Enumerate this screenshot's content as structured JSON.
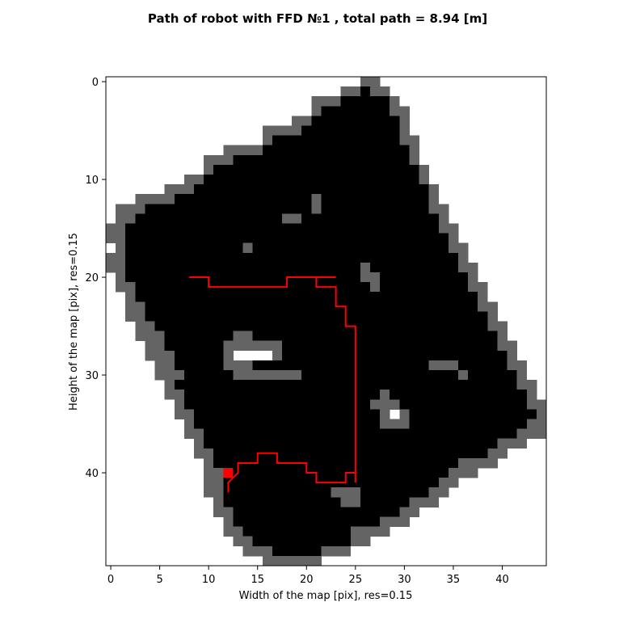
{
  "chart_data": {
    "type": "heatmap",
    "title": "Path of robot with FFD №1 , total path = 8.94 [m]",
    "xlabel": "Width of the map [pix], res=0.15",
    "ylabel": "Height of the map [pix], res=0.15",
    "grid": false,
    "x_ticks": [
      0,
      5,
      10,
      15,
      20,
      25,
      30,
      35,
      40
    ],
    "y_ticks": [
      0,
      10,
      20,
      30,
      40
    ],
    "map_width": 45,
    "map_height": 50,
    "colors": {
      "free": "#ffffff",
      "obstacle": "#000000",
      "boundary": "#646464",
      "path": "#ff0000"
    },
    "map_rows": [
      "..........................gg.................",
      "........................ggbgg................",
      ".....................gggbbbbbg...............",
      ".....................gbbbbbbbgg..............",
      "...................ggbbbbbbbbbg..............",
      "................ggggbbbbbbbbbbg..............",
      "................gbbbbbbbbbbbbbgg.............",
      "............ggggbbbbbbbbbbbbbbbg.............",
      "..........gggbbbbbbbbbbbbbbbbbbg.............",
      "..........gbbbbbbbbbbbbbbbbbbbbbg............",
      "........ggbbbbbbbbbbbbbbbbbbbbbbg............",
      "......gggbbbbbbbbbbbbbbbbbbbbbbbbg...........",
      "...ggggbbbbbbbbbbbbbbgbbbbbbbbbbbg...........",
      ".gggbbbbbbbbbbbbbbbbbgbbbbbbbbbbbgg..........",
      ".ggbbbbbbbbbbbbbbbggbbbbbbbbbbbbbbg..........",
      "ggbbbbbbbbbbbbbbbbbbbbbbbbbbbbbbbbgg.........",
      "ggbbbbbbbbbbbbbbbbbbbbbbbbbbbbbbbbbg.........",
      ".gbbbbbbbbbbbbgbbbbbbbbbbbbbbbbbbbbgg........",
      "ggbbbbbbbbbbbbbbbbbbbbbbbbbbbbbbbbbbg........",
      "ggbbbbbbbbbbbbbbbbbbbbbbbbgbbbbbbbbbgg.......",
      ".gbbbbbbbbbbbbbbbbbbbbbbbbggbbbbbbbbbg.......",
      ".ggbbbbbbbbbbbbbbbbbbbbbbbbgbbbbbbbbbgg......",
      "..gbbbbbbbbbbbbbbbbbbbbbbbbbbbbbbbbbbbg......",
      "..ggbbbbbbbbbbbbbbbbbbbbbbbbbbbbbbbbbbgg.....",
      "..ggbbbbbbbbbbbbbbbbbbbbbbbbbbbbbbbbbbbg.....",
      "...ggbbbbbbbbbbbbbbbbbbbbbbbbbbbbbbbbbbgg....",
      "...gggbbbbbbbggbbbbbbbbbbbbbbbbbbbbbbbbbg....",
      "....ggbbbbbbggggggbbbbbbbbbbbbbbbbbbbbbbgg...",
      "....gggbbbbbg....gbbbbbbbbbbbbbbbbbbbbbbbg...",
      ".....ggbbbbbgggbbbbbbbbbbbbbbbbbbgggbbbbbgg..",
      ".....gggbbbbbgggggggbbbbbbbbbbbbbbbbgbbbbbg..",
      "......gbbbbbbbbbbbbbbbbbbbbbbbbbbbbbbbbbbbgg.",
      "......ggbbbbbbbbbbbbbbbbbbbbgbbbbbbbbbbbbbbg.",
      ".......gbbbbbbbbbbbbbbbbbbbgggbbbbbbbbbbbbbgg",
      ".......ggbbbbbbbbbbbbbbbbbbbg.gbbbbbbbbbbbbbg",
      "........gbbbbbbbbbbbbbbbbbbbgggbbbbbbbbbbbbgg",
      "........ggbbbbbbbbbbbbbbbbbbbbbbbbbbbbbbbbggg",
      ".........gbbbbbbbbbbbbbbbbbbbbbbbbbbbbbbggg..",
      ".........ggbbbbbbbbbbbbbbbbbbbbbbbbbbbbgg....",
      "..........gbbbbbbbbbbbbbbbbbbbbbbbbbgggg.....",
      "..........ggbbbbbbbbbbbbbbbbbbbbbbbggg.......",
      "..........ggbbbbbbbbbbbbbbbbbbbbbbgg.........",
      "..........ggbbbbbbbbbbbgggbbbbbbbgg..........",
      "...........gbbbbbbbbbbbbggbbbbbggg...........",
      "...........ggbbbbbbbbbbbbbbbbbgg.............",
      "............gbbbbbbbbbbbbbbbggg..............",
      "............ggbbbbbbbbbbbgggg................",
      ".............ggbbbbbbbbbbgg..................",
      "..............gggbbbbbggg....................",
      "................gggggg......................."
    ],
    "path": [
      [
        8,
        20
      ],
      [
        10,
        20
      ],
      [
        10,
        21
      ],
      [
        18,
        21
      ],
      [
        18,
        20
      ],
      [
        23,
        20
      ],
      [
        21,
        20
      ],
      [
        21,
        21
      ],
      [
        23,
        21
      ],
      [
        23,
        23
      ],
      [
        24,
        23
      ],
      [
        24,
        25
      ],
      [
        25,
        25
      ],
      [
        25,
        41
      ],
      [
        25,
        40
      ],
      [
        24,
        40
      ],
      [
        24,
        41
      ],
      [
        21,
        41
      ],
      [
        21,
        40
      ],
      [
        20,
        40
      ],
      [
        20,
        39
      ],
      [
        17,
        39
      ],
      [
        17,
        38
      ],
      [
        15,
        38
      ],
      [
        15,
        39
      ],
      [
        13,
        39
      ],
      [
        13,
        40
      ],
      [
        12,
        41
      ],
      [
        12,
        42
      ]
    ],
    "robot_marker": [
      12,
      40
    ]
  }
}
